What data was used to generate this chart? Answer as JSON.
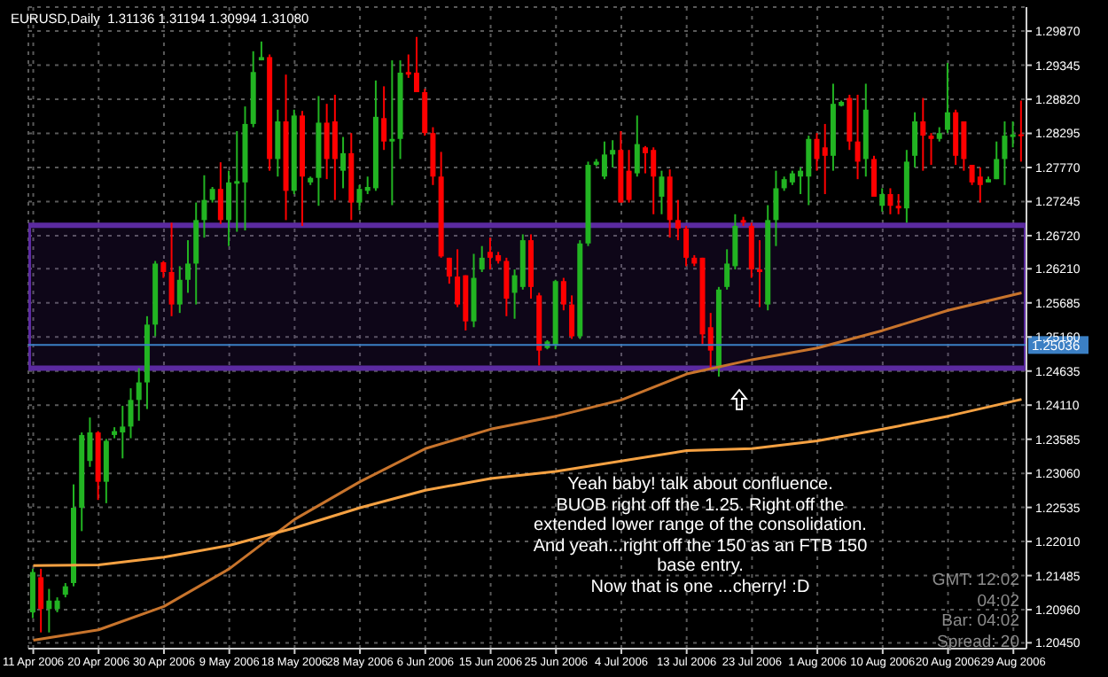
{
  "chart_data": {
    "type": "candlestick",
    "title": "EURUSD,Daily  1.31136 1.31194 1.30994 1.31080",
    "categories": [
      "11 Apr 2006",
      null,
      null,
      null,
      null,
      null,
      null,
      null,
      "20 Apr 2006",
      null,
      null,
      null,
      null,
      null,
      null,
      null,
      "30 Apr 2006",
      null,
      null,
      null,
      null,
      null,
      null,
      null,
      "9 May 2006",
      null,
      null,
      null,
      null,
      null,
      null,
      null,
      "18 May 2006",
      null,
      null,
      null,
      null,
      null,
      null,
      null,
      "28 May 2006",
      null,
      null,
      null,
      null,
      null,
      null,
      null,
      "6 Jun 2006",
      null,
      null,
      null,
      null,
      null,
      null,
      null,
      "15 Jun 2006",
      null,
      null,
      null,
      null,
      null,
      null,
      null,
      "25 Jun 2006",
      null,
      null,
      null,
      null,
      null,
      null,
      null,
      "4 Jul 2006",
      null,
      null,
      null,
      null,
      null,
      null,
      null,
      "13 Jul 2006",
      null,
      null,
      null,
      null,
      null,
      null,
      null,
      "23 Jul 2006",
      null,
      null,
      null,
      null,
      null,
      null,
      null,
      "1 Aug 2006",
      null,
      null,
      null,
      null,
      null,
      null,
      null,
      "10 Aug 2006",
      null,
      null,
      null,
      null,
      null,
      null,
      null,
      "20 Aug 2006",
      null,
      null,
      null,
      null,
      null,
      null,
      null,
      "29 Aug 2006",
      null
    ],
    "ohlc": [
      [
        1.2092,
        1.2159,
        1.2083,
        1.2154
      ],
      [
        1.2146,
        1.2159,
        1.2061,
        1.2097
      ],
      [
        1.2097,
        1.2128,
        1.2061,
        1.211
      ],
      [
        1.2097,
        1.2115,
        1.2092,
        1.211
      ],
      [
        1.2119,
        1.2137,
        1.2115,
        1.2132
      ],
      [
        1.2137,
        1.2289,
        1.2132,
        1.2253
      ],
      [
        1.2253,
        1.2369,
        1.2217,
        1.2365
      ],
      [
        1.2325,
        1.2392,
        1.2316,
        1.2369
      ],
      [
        1.2369,
        1.2371,
        1.2265,
        1.2293
      ],
      [
        1.2293,
        1.2359,
        1.226,
        1.2356
      ],
      [
        1.2365,
        1.2377,
        1.236,
        1.2371
      ],
      [
        1.2369,
        1.241,
        1.2329,
        1.2378
      ],
      [
        1.2378,
        1.2437,
        1.236,
        1.2419
      ],
      [
        1.2419,
        1.2468,
        1.2387,
        1.2446
      ],
      [
        1.2446,
        1.2548,
        1.2405,
        1.2535
      ],
      [
        1.2535,
        1.2633,
        1.2517,
        1.2629
      ],
      [
        1.2631,
        1.2633,
        1.2607,
        1.2616
      ],
      [
        1.2616,
        1.2692,
        1.2548,
        1.2566
      ],
      [
        1.2566,
        1.2625,
        1.2553,
        1.2604
      ],
      [
        1.2604,
        1.2665,
        1.2584,
        1.2629
      ],
      [
        1.2629,
        1.2723,
        1.2566,
        1.2696
      ],
      [
        1.2696,
        1.2765,
        1.2669,
        1.2727
      ],
      [
        1.2727,
        1.2747,
        1.2723,
        1.2744
      ],
      [
        1.2744,
        1.2785,
        1.269,
        1.2696
      ],
      [
        1.2696,
        1.2772,
        1.2656,
        1.2754
      ],
      [
        1.2752,
        1.2833,
        1.2678,
        1.2756
      ],
      [
        1.2754,
        1.2871,
        1.268,
        1.2844
      ],
      [
        1.2844,
        1.2956,
        1.2839,
        1.2924
      ],
      [
        1.2942,
        1.2971,
        1.2942,
        1.2947
      ],
      [
        1.2947,
        1.2951,
        1.2772,
        1.279
      ],
      [
        1.279,
        1.2866,
        1.2763,
        1.2848
      ],
      [
        1.2848,
        1.292,
        1.2696,
        1.2741
      ],
      [
        1.2741,
        1.2866,
        1.2736,
        1.2857
      ],
      [
        1.2857,
        1.2864,
        1.2687,
        1.2763
      ],
      [
        1.2754,
        1.2763,
        1.275,
        1.2761
      ],
      [
        1.2761,
        1.2887,
        1.2718,
        1.2846
      ],
      [
        1.2846,
        1.2875,
        1.2759,
        1.279
      ],
      [
        1.2848,
        1.2889,
        1.2727,
        1.279
      ],
      [
        1.2772,
        1.2824,
        1.2745,
        1.2799
      ],
      [
        1.2799,
        1.283,
        1.2696,
        1.2723
      ],
      [
        1.2723,
        1.275,
        1.2711,
        1.2744
      ],
      [
        1.2741,
        1.2763,
        1.2736,
        1.2747
      ],
      [
        1.2745,
        1.2911,
        1.2741,
        1.2855
      ],
      [
        1.2853,
        1.2902,
        1.2804,
        1.2817
      ],
      [
        1.2817,
        1.2942,
        1.2719,
        1.2821
      ],
      [
        1.2821,
        1.2942,
        1.279,
        1.2923
      ],
      [
        1.2924,
        1.2951,
        1.2915,
        1.292
      ],
      [
        1.2923,
        1.2978,
        1.2893,
        1.2893
      ],
      [
        1.2893,
        1.2898,
        1.2826,
        1.283
      ],
      [
        1.283,
        1.2839,
        1.275,
        1.2763
      ],
      [
        1.2763,
        1.2801,
        1.2638,
        1.264
      ],
      [
        1.2638,
        1.2638,
        1.2598,
        1.2609
      ],
      [
        1.2609,
        1.2651,
        1.2562,
        1.2566
      ],
      [
        1.2611,
        1.2611,
        1.2526,
        1.254
      ],
      [
        1.254,
        1.2644,
        1.2531,
        1.2607
      ],
      [
        1.262,
        1.2656,
        1.2616,
        1.2638
      ],
      [
        1.2647,
        1.2669,
        1.262,
        1.2638
      ],
      [
        1.2642,
        1.2647,
        1.2629,
        1.2633
      ],
      [
        1.2633,
        1.2638,
        1.2548,
        1.2575
      ],
      [
        1.2584,
        1.262,
        1.2544,
        1.2611
      ],
      [
        1.2593,
        1.2674,
        1.2589,
        1.2665
      ],
      [
        1.2665,
        1.2674,
        1.2575,
        1.2593
      ],
      [
        1.258,
        1.2584,
        1.2472,
        1.2495
      ],
      [
        1.2499,
        1.2511,
        1.2497,
        1.2509
      ],
      [
        1.2504,
        1.2604,
        1.2497,
        1.2602
      ],
      [
        1.2602,
        1.2607,
        1.2557,
        1.2566
      ],
      [
        1.2566,
        1.258,
        1.2513,
        1.2517
      ],
      [
        1.2517,
        1.2665,
        1.2513,
        1.266
      ],
      [
        1.266,
        1.2786,
        1.2656,
        1.2781
      ],
      [
        1.2781,
        1.279,
        1.2779,
        1.2786
      ],
      [
        1.2763,
        1.2817,
        1.2759,
        1.2797
      ],
      [
        1.2797,
        1.2819,
        1.2777,
        1.2804
      ],
      [
        1.2804,
        1.2833,
        1.2723,
        1.2723
      ],
      [
        1.2772,
        1.2804,
        1.2723,
        1.2727
      ],
      [
        1.2768,
        1.2857,
        1.2763,
        1.2813
      ],
      [
        1.2808,
        1.281,
        1.2768,
        1.2799
      ],
      [
        1.2804,
        1.2808,
        1.2705,
        1.2763
      ],
      [
        1.2732,
        1.2772,
        1.2705,
        1.2763
      ],
      [
        1.2763,
        1.2774,
        1.2669,
        1.2696
      ],
      [
        1.2696,
        1.2727,
        1.2665,
        1.2683
      ],
      [
        1.2683,
        1.2687,
        1.2625,
        1.2638
      ],
      [
        1.2638,
        1.2642,
        1.2625,
        1.2629
      ],
      [
        1.2638,
        1.2638,
        1.2505,
        1.252
      ],
      [
        1.2531,
        1.2553,
        1.2468,
        1.2495
      ],
      [
        1.2468,
        1.2593,
        1.2455,
        1.2589
      ],
      [
        1.2593,
        1.2651,
        1.2589,
        1.2629
      ],
      [
        1.2625,
        1.2705,
        1.262,
        1.2687
      ],
      [
        1.2696,
        1.2701,
        1.2687,
        1.2692
      ],
      [
        1.2687,
        1.2692,
        1.2607,
        1.262
      ],
      [
        1.262,
        1.2665,
        1.2562,
        1.2616
      ],
      [
        1.2566,
        1.2719,
        1.2557,
        1.2696
      ],
      [
        1.2696,
        1.2772,
        1.2656,
        1.2745
      ],
      [
        1.2745,
        1.2763,
        1.2741,
        1.2759
      ],
      [
        1.2754,
        1.2772,
        1.275,
        1.2768
      ],
      [
        1.2763,
        1.2777,
        1.2736,
        1.2772
      ],
      [
        1.2763,
        1.2826,
        1.2719,
        1.2821
      ],
      [
        1.2821,
        1.283,
        1.2772,
        1.279
      ],
      [
        1.2808,
        1.2844,
        1.2736,
        1.2795
      ],
      [
        1.2795,
        1.2906,
        1.2772,
        1.2875
      ],
      [
        1.2872,
        1.288,
        1.2871,
        1.2878
      ],
      [
        1.2884,
        1.2889,
        1.2804,
        1.2817
      ],
      [
        1.2817,
        1.2889,
        1.2759,
        1.2786
      ],
      [
        1.279,
        1.2906,
        1.2763,
        1.2866
      ],
      [
        1.279,
        1.2795,
        1.2732,
        1.2732
      ],
      [
        1.2718,
        1.2745,
        1.2709,
        1.2736
      ],
      [
        1.2736,
        1.2745,
        1.2705,
        1.2718
      ],
      [
        1.2718,
        1.2736,
        1.2705,
        1.2714
      ],
      [
        1.2714,
        1.2804,
        1.2692,
        1.2786
      ],
      [
        1.2795,
        1.2862,
        1.2777,
        1.2848
      ],
      [
        1.2848,
        1.2884,
        1.2772,
        1.2826
      ],
      [
        1.2826,
        1.283,
        1.2781,
        1.2821
      ],
      [
        1.2821,
        1.2839,
        1.2817,
        1.283
      ],
      [
        1.2835,
        1.2938,
        1.283,
        1.2862
      ],
      [
        1.2862,
        1.2866,
        1.2781,
        1.2795
      ],
      [
        1.2848,
        1.2848,
        1.2772,
        1.279
      ],
      [
        1.2781,
        1.2781,
        1.275,
        1.2754
      ],
      [
        1.2763,
        1.2777,
        1.2723,
        1.275
      ],
      [
        1.2754,
        1.2763,
        1.2754,
        1.2759
      ],
      [
        1.2759,
        1.2817,
        1.2759,
        1.279
      ],
      [
        1.279,
        1.2848,
        1.275,
        1.2826
      ],
      [
        1.2824,
        1.2848,
        1.2808,
        1.2828
      ],
      [
        1.2828,
        1.288,
        1.2786,
        1.2826
      ]
    ],
    "colors": [
      "#22b422",
      "#ff0000",
      "#22b422",
      "#22b422",
      "#22b422",
      "#22b422",
      "#22b422",
      "#22b422",
      "#ff0000",
      "#22b422",
      "#22b422",
      "#22b422",
      "#22b422",
      "#22b422",
      "#22b422",
      "#22b422",
      "#ff0000",
      "#ff0000",
      "#22b422",
      "#22b422",
      "#22b422",
      "#22b422",
      "#22b422",
      "#ff0000",
      "#22b422",
      "#22b422",
      "#22b422",
      "#22b422",
      "#22b422",
      "#ff0000",
      "#22b422",
      "#ff0000",
      "#22b422",
      "#ff0000",
      "#22b422",
      "#22b422",
      "#ff0000",
      "#ff0000",
      "#22b422",
      "#ff0000",
      "#22b422",
      "#22b422",
      "#22b422",
      "#ff0000",
      "#22b422",
      "#22b422",
      "#ff0000",
      "#ff0000",
      "#ff0000",
      "#ff0000",
      "#ff0000",
      "#ff0000",
      "#ff0000",
      "#ff0000",
      "#22b422",
      "#22b422",
      "#ff0000",
      "#ff0000",
      "#ff0000",
      "#22b422",
      "#22b422",
      "#ff0000",
      "#ff0000",
      "#22b422",
      "#22b422",
      "#ff0000",
      "#ff0000",
      "#22b422",
      "#22b422",
      "#22b422",
      "#22b422",
      "#22b422",
      "#ff0000",
      "#ff0000",
      "#22b422",
      "#ff0000",
      "#ff0000",
      "#22b422",
      "#ff0000",
      "#ff0000",
      "#ff0000",
      "#ff0000",
      "#ff0000",
      "#ff0000",
      "#22b422",
      "#22b422",
      "#22b422",
      "#ff0000",
      "#ff0000",
      "#ff0000",
      "#22b422",
      "#22b422",
      "#22b422",
      "#22b422",
      "#22b422",
      "#22b422",
      "#ff0000",
      "#ff0000",
      "#22b422",
      "#22b422",
      "#ff0000",
      "#ff0000",
      "#22b422",
      "#ff0000",
      "#22b422",
      "#ff0000",
      "#ff0000",
      "#22b422",
      "#22b422",
      "#ff0000",
      "#ff0000",
      "#22b422",
      "#22b422",
      "#ff0000",
      "#ff0000",
      "#ff0000",
      "#ff0000",
      "#22b422",
      "#22b422",
      "#22b422",
      "#22b422",
      "#ff0000"
    ],
    "series": [
      {
        "type": "line",
        "color": "#c8742c",
        "values": [
          1.2049,
          null,
          null,
          null,
          null,
          null,
          null,
          null,
          1.2065,
          null,
          null,
          null,
          null,
          null,
          null,
          null,
          1.2101,
          null,
          null,
          null,
          null,
          null,
          null,
          null,
          1.2159,
          null,
          null,
          null,
          null,
          null,
          null,
          null,
          1.2235,
          null,
          null,
          null,
          null,
          null,
          null,
          null,
          1.2293,
          null,
          null,
          null,
          null,
          null,
          null,
          null,
          1.2344,
          null,
          null,
          null,
          null,
          null,
          null,
          null,
          1.2374,
          null,
          null,
          null,
          null,
          null,
          null,
          null,
          1.2394,
          null,
          null,
          null,
          null,
          null,
          null,
          null,
          1.2419,
          null,
          null,
          null,
          null,
          null,
          null,
          null,
          1.2459,
          null,
          null,
          null,
          null,
          null,
          null,
          null,
          1.2481,
          null,
          null,
          null,
          null,
          null,
          null,
          null,
          1.2499,
          null,
          null,
          null,
          null,
          null,
          null,
          null,
          1.2526,
          null,
          null,
          null,
          null,
          null,
          null,
          null,
          1.2557,
          null,
          null,
          null,
          null,
          null,
          null,
          null,
          null,
          1.2584
        ]
      },
      {
        "type": "line",
        "color": "#f5a142",
        "values": [
          1.2164,
          null,
          null,
          null,
          null,
          null,
          null,
          null,
          1.2165,
          null,
          null,
          null,
          null,
          null,
          null,
          null,
          1.2177,
          null,
          null,
          null,
          null,
          null,
          null,
          null,
          1.2195,
          null,
          null,
          null,
          null,
          null,
          null,
          null,
          1.2222,
          null,
          null,
          null,
          null,
          null,
          null,
          null,
          1.2253,
          null,
          null,
          null,
          null,
          null,
          null,
          null,
          1.228,
          null,
          null,
          null,
          null,
          null,
          null,
          null,
          1.2298,
          null,
          null,
          null,
          null,
          null,
          null,
          null,
          1.2309,
          null,
          null,
          null,
          null,
          null,
          null,
          null,
          1.2325,
          null,
          null,
          null,
          null,
          null,
          null,
          null,
          1.2341,
          null,
          null,
          null,
          null,
          null,
          null,
          null,
          1.2344,
          null,
          null,
          null,
          null,
          null,
          null,
          null,
          1.2356,
          null,
          null,
          null,
          null,
          null,
          null,
          null,
          1.2374,
          null,
          null,
          null,
          null,
          null,
          null,
          null,
          1.2394,
          null,
          null,
          null,
          null,
          null,
          null,
          null,
          null,
          1.242
        ]
      }
    ],
    "ylim": [
      1.2036,
      1.3024
    ],
    "yticks": [
      {
        "value": 1.2987,
        "label": "1.29870"
      },
      {
        "value": 1.29345,
        "label": "1.29345"
      },
      {
        "value": 1.2882,
        "label": "1.28820"
      },
      {
        "value": 1.28295,
        "label": "1.28295"
      },
      {
        "value": 1.2777,
        "label": "1.27770"
      },
      {
        "value": 1.27245,
        "label": "1.27245"
      },
      {
        "value": 1.2672,
        "label": "1.26720"
      },
      {
        "value": 1.2621,
        "label": "1.26210"
      },
      {
        "value": 1.25685,
        "label": "1.25685"
      },
      {
        "value": 1.2516,
        "label": "1.25160"
      },
      {
        "value": 1.24635,
        "label": "1.24635"
      },
      {
        "value": 1.2411,
        "label": "1.24110"
      },
      {
        "value": 1.23585,
        "label": "1.23585"
      },
      {
        "value": 1.2306,
        "label": "1.23060"
      },
      {
        "value": 1.22535,
        "label": "1.22535"
      },
      {
        "value": 1.2201,
        "label": "1.22010"
      },
      {
        "value": 1.21485,
        "label": "1.21485"
      },
      {
        "value": 1.2096,
        "label": "1.20960"
      },
      {
        "value": 1.2045,
        "label": "1.20450"
      }
    ],
    "grid": true,
    "ref_lines": [
      {
        "axis": "y",
        "value": 1.25036,
        "label": "1.25036",
        "color": "#3b7fc4"
      }
    ],
    "bands": [
      {
        "axis": "y",
        "from": 1.2468,
        "to": 1.2688,
        "color": "#5b2aa0"
      }
    ],
    "annotations": [
      "Yeah baby! talk about confluence.\nBUOB right off the 1.25. Right off the\nextended lower range of the consolidation.\nAnd yeah...right off the 150 as an FTB 150\nbase entry.\nNow that is one ...cherry! :D",
      "GMT:  12:02\n04:02\nBar:  04:02\nSpread:  20"
    ]
  }
}
